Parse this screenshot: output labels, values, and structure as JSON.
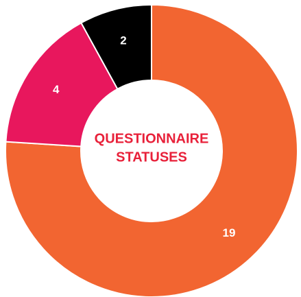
{
  "chart_data": {
    "type": "donut",
    "title_lines": [
      "QUESTIONNAIRE",
      "STATUSES"
    ],
    "values": [
      19,
      4,
      2
    ],
    "colors": [
      "#f26531",
      "#e8175d",
      "#000000"
    ]
  }
}
